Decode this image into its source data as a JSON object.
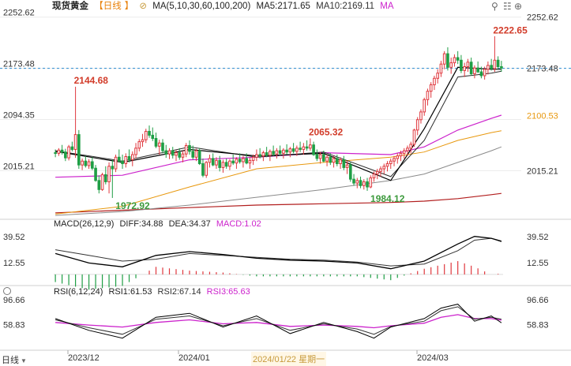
{
  "header": {
    "instrument": "现货黄金",
    "period": "日线",
    "ma_params": "MA(5,10,30,60,100,200)",
    "ma5": "MA5:2171.65",
    "ma10": "MA10:2169.11",
    "ma_more": "MA"
  },
  "macd_legend": {
    "params": "MACD(26,12,9)",
    "diff": "DIFF:34.88",
    "dea": "DEA:34.37",
    "macd": "MACD:1.02"
  },
  "rsi_legend": {
    "params": "RSI(6,12,24)",
    "rsi1": "RSI1:61.53",
    "rsi2": "RSI2:67.14",
    "rsi3": "RSI3:65.63"
  },
  "footer": {
    "period_selector": "日线",
    "date_labels": [
      "2023/12",
      "2024/01",
      "2024/03"
    ],
    "cursor_date": "2024/01/22 星期一"
  },
  "chart_data": {
    "type": "candlestick",
    "colors": {
      "up": "#e0383e",
      "down": "#1f9e45",
      "ma5": "#000000",
      "ma10": "#2b2b2b",
      "ma30": "#cc22cc",
      "ma60": "#e8980e",
      "ma100": "#8a8a8a",
      "ma200": "#b21e1e",
      "diff": "#000000",
      "dea": "#333333",
      "macd": "#cc22cc",
      "rsi1": "#000000",
      "rsi2": "#333333",
      "rsi3": "#cc22cc",
      "accent_red": "#d23c2a",
      "accent_green": "#3c9a3c",
      "current_price_line": "#2a8bd0",
      "tick_highlight": "#e8980e"
    },
    "price_axis": {
      "range": [
        1940,
        2262
      ],
      "ticks": [
        "2252.62",
        "2173.48",
        "2094.35",
        "2015.21"
      ],
      "tick_values": [
        2252.62,
        2173.48,
        2094.35,
        2015.21
      ],
      "right_ticks": [
        "2252.62",
        "2173.48",
        "2100.53",
        "2015.21"
      ],
      "right_values": [
        2252.62,
        2173.48,
        2100.53,
        2015.21
      ],
      "current_price": 2173.48,
      "highlighted_tick": "2100.53"
    },
    "annotations": [
      {
        "text": "2144.68",
        "value": 2144.68,
        "bar": 6,
        "color": "red"
      },
      {
        "text": "1972.92",
        "value": 1972.92,
        "bar": 17,
        "color": "green"
      },
      {
        "text": "2065.32",
        "value": 2065.32,
        "bar": 76,
        "color": "red"
      },
      {
        "text": "1984.12",
        "value": 1984.12,
        "bar": 93,
        "color": "green"
      },
      {
        "text": "2222.65",
        "value": 2222.65,
        "bar": 131,
        "color": "red"
      }
    ],
    "ohlc": [
      [
        2043,
        2048,
        2036,
        2042
      ],
      [
        2042,
        2050,
        2038,
        2047
      ],
      [
        2047,
        2055,
        2040,
        2044
      ],
      [
        2044,
        2049,
        2030,
        2035
      ],
      [
        2035,
        2055,
        2031,
        2052
      ],
      [
        2052,
        2060,
        2045,
        2048
      ],
      [
        2048,
        2145,
        2035,
        2071
      ],
      [
        2071,
        2078,
        2018,
        2024
      ],
      [
        2024,
        2034,
        2016,
        2030
      ],
      [
        2030,
        2038,
        2020,
        2023
      ],
      [
        2023,
        2033,
        2018,
        2029
      ],
      [
        2029,
        2036,
        2016,
        2019
      ],
      [
        2019,
        2024,
        1998,
        2000
      ],
      [
        2000,
        2008,
        1980,
        1986
      ],
      [
        1986,
        2012,
        1984,
        2009
      ],
      [
        2009,
        2022,
        1994,
        1998
      ],
      [
        1998,
        2028,
        1980,
        2022
      ],
      [
        2022,
        2032,
        1973,
        2018
      ],
      [
        2018,
        2040,
        2013,
        2036
      ],
      [
        2036,
        2048,
        2028,
        2030
      ],
      [
        2030,
        2040,
        2018,
        2026
      ],
      [
        2026,
        2042,
        2020,
        2037
      ],
      [
        2037,
        2048,
        2028,
        2032
      ],
      [
        2032,
        2045,
        2022,
        2040
      ],
      [
        2040,
        2058,
        2034,
        2050
      ],
      [
        2050,
        2064,
        2045,
        2060
      ],
      [
        2060,
        2072,
        2052,
        2063
      ],
      [
        2063,
        2080,
        2058,
        2076
      ],
      [
        2076,
        2085,
        2066,
        2070
      ],
      [
        2070,
        2082,
        2061,
        2065
      ],
      [
        2065,
        2074,
        2050,
        2053
      ],
      [
        2053,
        2063,
        2040,
        2058
      ],
      [
        2058,
        2064,
        2042,
        2046
      ],
      [
        2046,
        2055,
        2035,
        2041
      ],
      [
        2041,
        2050,
        2033,
        2046
      ],
      [
        2046,
        2052,
        2034,
        2039
      ],
      [
        2039,
        2047,
        2030,
        2043
      ],
      [
        2043,
        2050,
        2032,
        2036
      ],
      [
        2036,
        2046,
        2028,
        2041
      ],
      [
        2041,
        2058,
        2036,
        2054
      ],
      [
        2054,
        2062,
        2040,
        2045
      ],
      [
        2045,
        2054,
        2032,
        2036
      ],
      [
        2036,
        2049,
        2030,
        2046
      ],
      [
        2046,
        2050,
        2024,
        2026
      ],
      [
        2026,
        2034,
        2005,
        2008
      ],
      [
        2008,
        2030,
        2004,
        2028
      ],
      [
        2028,
        2040,
        2020,
        2034
      ],
      [
        2034,
        2042,
        2022,
        2024
      ],
      [
        2024,
        2036,
        2018,
        2031
      ],
      [
        2031,
        2038,
        2014,
        2020
      ],
      [
        2020,
        2032,
        2012,
        2028
      ],
      [
        2028,
        2034,
        2018,
        2022
      ],
      [
        2022,
        2033,
        2016,
        2030
      ],
      [
        2030,
        2040,
        2024,
        2027
      ],
      [
        2027,
        2036,
        2018,
        2033
      ],
      [
        2033,
        2042,
        2026,
        2029
      ],
      [
        2029,
        2038,
        2020,
        2034
      ],
      [
        2034,
        2042,
        2025,
        2027
      ],
      [
        2027,
        2036,
        2018,
        2031
      ],
      [
        2031,
        2040,
        2024,
        2036
      ],
      [
        2036,
        2048,
        2030,
        2040
      ],
      [
        2040,
        2050,
        2034,
        2038
      ],
      [
        2038,
        2046,
        2030,
        2043
      ],
      [
        2043,
        2052,
        2036,
        2039
      ],
      [
        2039,
        2048,
        2030,
        2045
      ],
      [
        2045,
        2054,
        2038,
        2041
      ],
      [
        2041,
        2050,
        2034,
        2046
      ],
      [
        2046,
        2054,
        2038,
        2042
      ],
      [
        2042,
        2050,
        2034,
        2047
      ],
      [
        2047,
        2056,
        2040,
        2044
      ],
      [
        2044,
        2052,
        2036,
        2049
      ],
      [
        2049,
        2058,
        2042,
        2045
      ],
      [
        2045,
        2054,
        2038,
        2050
      ],
      [
        2050,
        2060,
        2044,
        2048
      ],
      [
        2048,
        2058,
        2040,
        2052
      ],
      [
        2052,
        2062,
        2046,
        2050
      ],
      [
        2050,
        2065,
        2046,
        2055
      ],
      [
        2055,
        2060,
        2038,
        2040
      ],
      [
        2040,
        2048,
        2030,
        2034
      ],
      [
        2034,
        2044,
        2026,
        2040
      ],
      [
        2040,
        2046,
        2028,
        2030
      ],
      [
        2030,
        2040,
        2022,
        2036
      ],
      [
        2036,
        2042,
        2024,
        2028
      ],
      [
        2028,
        2038,
        2020,
        2034
      ],
      [
        2034,
        2040,
        2022,
        2026
      ],
      [
        2026,
        2036,
        2018,
        2032
      ],
      [
        2032,
        2038,
        2016,
        2020
      ],
      [
        2020,
        2030,
        2010,
        2024
      ],
      [
        2024,
        2028,
        1998,
        2002
      ],
      [
        2002,
        2010,
        1992,
        1996
      ],
      [
        1996,
        2004,
        1988,
        2000
      ],
      [
        2000,
        2006,
        1988,
        1992
      ],
      [
        1992,
        2002,
        1986,
        1998
      ],
      [
        1998,
        2004,
        1984,
        1990
      ],
      [
        1990,
        2008,
        1988,
        2004
      ],
      [
        2004,
        2014,
        1998,
        2010
      ],
      [
        2010,
        2018,
        2002,
        2014
      ],
      [
        2014,
        2022,
        2006,
        2018
      ],
      [
        2018,
        2026,
        2010,
        2022
      ],
      [
        2022,
        2030,
        2014,
        2026
      ],
      [
        2026,
        2034,
        2018,
        2030
      ],
      [
        2030,
        2038,
        2022,
        2034
      ],
      [
        2034,
        2042,
        2026,
        2038
      ],
      [
        2038,
        2046,
        2030,
        2042
      ],
      [
        2042,
        2050,
        2034,
        2046
      ],
      [
        2046,
        2054,
        2038,
        2050
      ],
      [
        2050,
        2060,
        2042,
        2056
      ],
      [
        2056,
        2080,
        2052,
        2078
      ],
      [
        2078,
        2098,
        2070,
        2094
      ],
      [
        2094,
        2110,
        2088,
        2106
      ],
      [
        2106,
        2128,
        2100,
        2125
      ],
      [
        2125,
        2142,
        2116,
        2138
      ],
      [
        2138,
        2152,
        2128,
        2148
      ],
      [
        2148,
        2162,
        2140,
        2158
      ],
      [
        2158,
        2172,
        2150,
        2166
      ],
      [
        2166,
        2185,
        2160,
        2180
      ],
      [
        2180,
        2200,
        2172,
        2196
      ],
      [
        2196,
        2206,
        2170,
        2175
      ],
      [
        2175,
        2190,
        2165,
        2182
      ],
      [
        2182,
        2195,
        2176,
        2190
      ],
      [
        2190,
        2200,
        2180,
        2186
      ],
      [
        2186,
        2194,
        2166,
        2170
      ],
      [
        2170,
        2182,
        2160,
        2176
      ],
      [
        2176,
        2188,
        2168,
        2183
      ],
      [
        2183,
        2190,
        2162,
        2165
      ],
      [
        2165,
        2178,
        2158,
        2174
      ],
      [
        2174,
        2184,
        2166,
        2168
      ],
      [
        2168,
        2176,
        2158,
        2162
      ],
      [
        2162,
        2176,
        2156,
        2172
      ],
      [
        2172,
        2184,
        2164,
        2178
      ],
      [
        2178,
        2188,
        2170,
        2173
      ],
      [
        2173,
        2223,
        2168,
        2186
      ],
      [
        2186,
        2192,
        2172,
        2176
      ],
      [
        2176,
        2185,
        2168,
        2174
      ]
    ],
    "ma": {
      "ma5": {
        "x": [
          0,
          20,
          40,
          60,
          80,
          100,
          110,
          120,
          130,
          133
        ],
        "y": [
          2045,
          2028,
          2048,
          2038,
          2042,
          2000,
          2080,
          2175,
          2172,
          2172
        ]
      },
      "ma10": {
        "x": [
          0,
          20,
          40,
          60,
          80,
          100,
          110,
          120,
          130,
          133
        ],
        "y": [
          2046,
          2030,
          2052,
          2036,
          2044,
          2006,
          2062,
          2160,
          2166,
          2169
        ]
      },
      "ma30": {
        "x": [
          0,
          20,
          40,
          60,
          80,
          100,
          110,
          120,
          130,
          133
        ],
        "y": [
          2005,
          2008,
          2032,
          2036,
          2043,
          2040,
          2052,
          2078,
          2096,
          2101
        ]
      },
      "ma60": {
        "x": [
          0,
          20,
          40,
          60,
          80,
          100,
          110,
          120,
          130,
          133
        ],
        "y": [
          1948,
          1960,
          1990,
          2018,
          2028,
          2036,
          2044,
          2062,
          2074,
          2077
        ]
      },
      "ma100": {
        "x": [
          0,
          20,
          40,
          60,
          80,
          100,
          110,
          120,
          130,
          133
        ],
        "y": [
          1946,
          1952,
          1962,
          1974,
          1986,
          2000,
          2010,
          2028,
          2046,
          2052
        ]
      },
      "ma200": {
        "x": [
          0,
          20,
          40,
          60,
          80,
          100,
          110,
          120,
          130,
          133
        ],
        "y": [
          1950,
          1954,
          1958,
          1962,
          1964,
          1966,
          1968,
          1972,
          1978,
          1980
        ]
      }
    },
    "macd": {
      "range": [
        -10,
        48
      ],
      "ticks": [
        "39.52",
        "12.55"
      ],
      "tick_values": [
        39.52,
        12.55
      ],
      "diff": {
        "x": [
          0,
          10,
          20,
          30,
          40,
          50,
          60,
          70,
          80,
          90,
          100,
          110,
          120,
          125,
          130,
          133
        ],
        "y": [
          22,
          12,
          8,
          20,
          24,
          21,
          17,
          15,
          14,
          12,
          6,
          14,
          32,
          40,
          38,
          34.88
        ]
      },
      "dea": {
        "x": [
          0,
          10,
          20,
          30,
          40,
          50,
          60,
          70,
          80,
          90,
          100,
          110,
          120,
          125,
          130,
          133
        ],
        "y": [
          26,
          20,
          14,
          16,
          22,
          20,
          18,
          16,
          15,
          13,
          9,
          11,
          25,
          36,
          38,
          34.37
        ]
      }
    },
    "rsi": {
      "range": [
        22,
        104
      ],
      "ticks": [
        "96.66",
        "58.83"
      ],
      "tick_values": [
        96.66,
        58.83
      ],
      "rsi1": {
        "x": [
          0,
          10,
          20,
          30,
          40,
          50,
          60,
          70,
          80,
          90,
          95,
          100,
          110,
          115,
          120,
          125,
          130,
          133
        ],
        "y": [
          68,
          50,
          38,
          70,
          76,
          55,
          72,
          45,
          62,
          48,
          38,
          55,
          68,
          84,
          90,
          64,
          72,
          61.53
        ]
      },
      "rsi2": {
        "x": [
          0,
          10,
          20,
          30,
          40,
          50,
          60,
          70,
          80,
          90,
          95,
          100,
          110,
          115,
          120,
          125,
          130,
          133
        ],
        "y": [
          66,
          54,
          44,
          67,
          72,
          57,
          68,
          50,
          60,
          52,
          44,
          56,
          64,
          80,
          86,
          67,
          70,
          67.14
        ]
      },
      "rsi3": {
        "x": [
          0,
          10,
          20,
          30,
          40,
          50,
          60,
          70,
          80,
          90,
          95,
          100,
          110,
          115,
          120,
          125,
          130,
          133
        ],
        "y": [
          62,
          58,
          55,
          62,
          66,
          60,
          62,
          56,
          58,
          56,
          54,
          57,
          61,
          70,
          74,
          68,
          68,
          65.63
        ]
      }
    }
  }
}
